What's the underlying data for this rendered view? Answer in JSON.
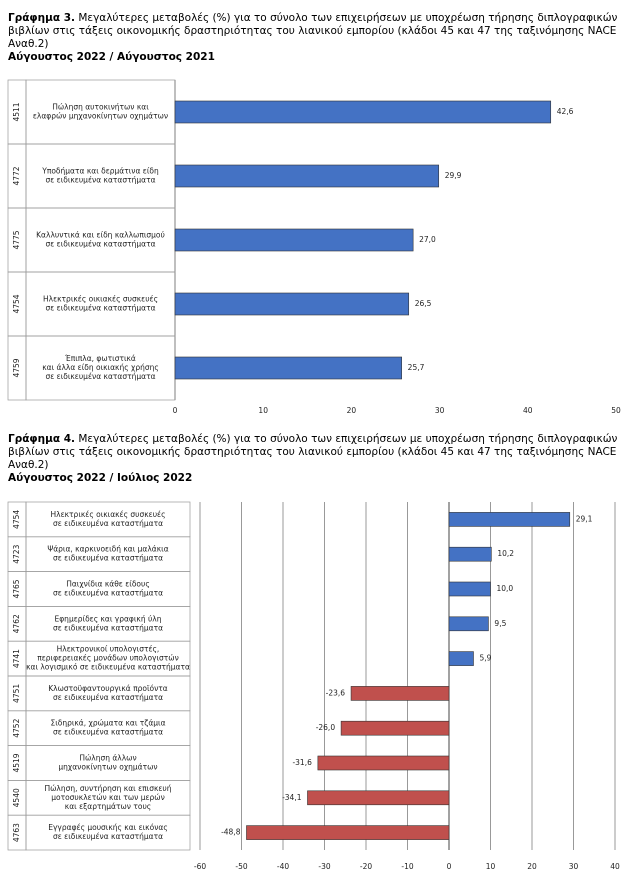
{
  "chart_data": [
    {
      "type": "bar",
      "orientation": "horizontal",
      "figure_label": "Γράφημα 3.",
      "title": "Μεγαλύτερες μεταβολές (%) για το σύνολο των επιχειρήσεων με υποχρέωση τήρησης διπλογραφικών βιβλίων στις τάξεις οικονομικής δραστηριότητας του λιανικού εμπορίου (κλάδοι 45 και 47 της ταξινόμησης NACE Αναθ.2)",
      "subtitle": "Αύγουστος 2022 / Αύγουστος 2021",
      "codes": [
        "4511",
        "4772",
        "4775",
        "4754",
        "4759"
      ],
      "categories": [
        [
          "Πώληση αυτοκινήτων και",
          "ελαφρών μηχανοκίνητων οχημάτων"
        ],
        [
          "Υποδήματα και δερμάτινα είδη",
          "σε ειδικευμένα καταστήματα"
        ],
        [
          "Καλλυντικά και είδη καλλωπισμού",
          "σε ειδικευμένα καταστήματα"
        ],
        [
          "Ηλεκτρικές οικιακές συσκευές",
          "σε ειδικευμένα καταστήματα"
        ],
        [
          "Έπιπλα, φωτιστικά",
          "και άλλα είδη οικιακής χρήσης",
          "σε ειδικευμένα καταστήματα"
        ]
      ],
      "values": [
        42.6,
        29.9,
        27.0,
        26.5,
        25.7
      ],
      "value_labels": [
        "42,6",
        "29,9",
        "27,0",
        "26,5",
        "25,7"
      ],
      "color_positive": "#4472c4",
      "color_negative": "#c0504d",
      "xlim": [
        0,
        50
      ],
      "xticks": [
        0,
        10,
        20,
        30,
        40,
        50
      ],
      "grid": false
    },
    {
      "type": "bar",
      "orientation": "horizontal",
      "figure_label": "Γράφημα 4.",
      "title": "Μεγαλύτερες μεταβολές (%) για το σύνολο των επιχειρήσεων με υποχρέωση τήρησης διπλογραφικών βιβλίων στις τάξεις οικονομικής δραστηριότητας του λιανικού εμπορίου (κλάδοι 45 και 47 της ταξινόμησης NACE Αναθ.2)",
      "subtitle": "Αύγουστος 2022 / Ιούλιος 2022",
      "codes": [
        "4754",
        "4723",
        "4765",
        "4762",
        "4741",
        "4751",
        "4752",
        "4519",
        "4540",
        "4763"
      ],
      "categories": [
        [
          "Ηλεκτρικές οικιακές συσκευές",
          "σε ειδικευμένα καταστήματα"
        ],
        [
          "Ψάρια, καρκινοειδή και μαλάκια",
          "σε ειδικευμένα καταστήματα"
        ],
        [
          "Παιχνίδια κάθε είδους",
          "σε ειδικευμένα καταστήματα"
        ],
        [
          "Εφημερίδες και γραφική ύλη",
          "σε ειδικευμένα καταστήματα"
        ],
        [
          "Ηλεκτρονικοί υπολογιστές,",
          "περιφερειακές μονάδων υπολογιστών",
          "και λογισμικό σε ειδικευμένα καταστήματα"
        ],
        [
          "Κλωστοϋφαντουργικά προϊόντα",
          "σε ειδικευμένα καταστήματα"
        ],
        [
          "Σιδηρικά, χρώματα και τζάμια",
          "σε ειδικευμένα καταστήματα"
        ],
        [
          "Πώληση άλλων",
          "μηχανοκίνητων οχημάτων"
        ],
        [
          "Πώληση, συντήρηση και επισκευή",
          "μοτοσυκλετών και των μερών",
          "και εξαρτημάτων τους"
        ],
        [
          "Εγγραφές μουσικής και εικόνας",
          "σε ειδικευμένα καταστήματα"
        ]
      ],
      "values": [
        29.1,
        10.2,
        10.0,
        9.5,
        5.9,
        -23.6,
        -26.0,
        -31.6,
        -34.1,
        -48.8
      ],
      "value_labels": [
        "29,1",
        "10,2",
        "10,0",
        "9,5",
        "5,9",
        "-23,6",
        "-26,0",
        "-31,6",
        "-34,1",
        "-48,8"
      ],
      "color_positive": "#4472c4",
      "color_negative": "#c0504d",
      "xlim": [
        -60,
        40
      ],
      "xticks": [
        -60,
        -50,
        -40,
        -30,
        -20,
        -10,
        0,
        10,
        20,
        30,
        40
      ],
      "grid": true
    }
  ]
}
